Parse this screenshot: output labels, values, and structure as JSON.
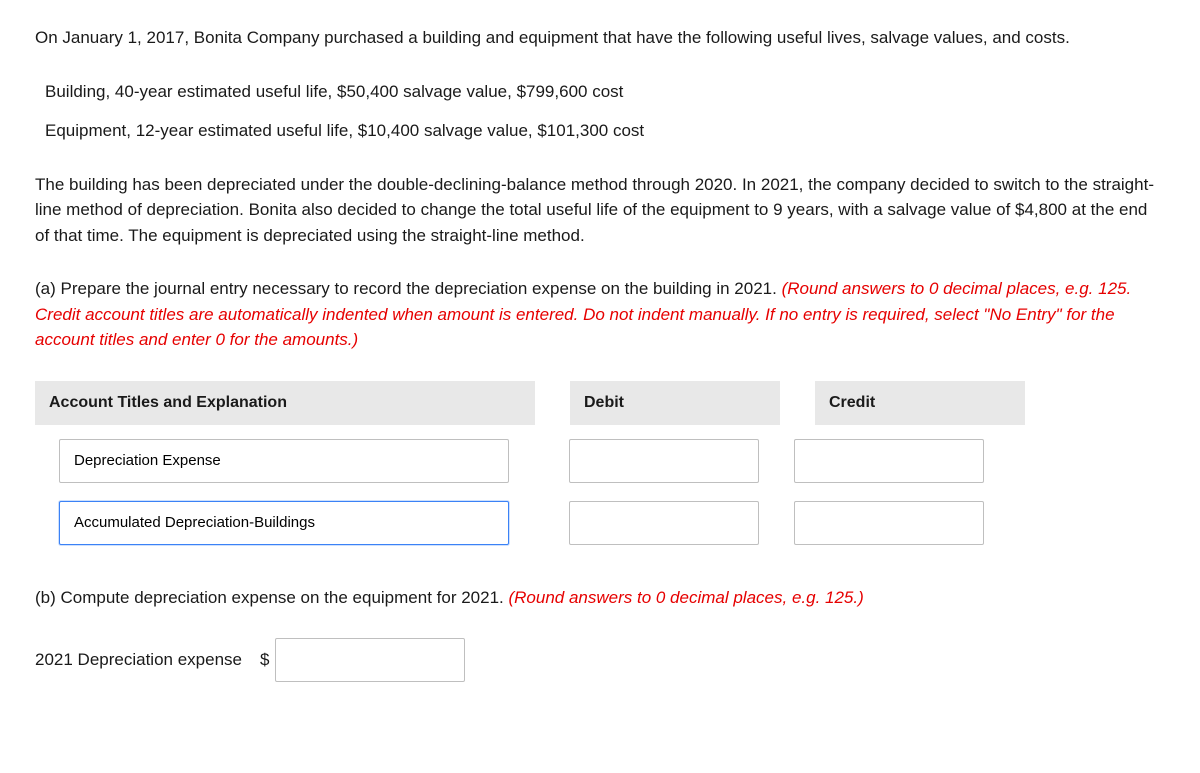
{
  "intro": "On January 1, 2017, Bonita Company purchased a building and equipment that have the following useful lives, salvage values, and costs.",
  "assets": {
    "building": "Building, 40-year estimated useful life, $50,400 salvage value, $799,600 cost",
    "equipment": "Equipment, 12-year estimated useful life, $10,400 salvage value, $101,300 cost"
  },
  "description": "The building has been depreciated under the double-declining-balance method through 2020. In 2021, the company decided to switch to the straight-line method of depreciation. Bonita also decided to change the total useful life of the equipment to 9 years, with a salvage value of $4,800 at the end of that time. The equipment is depreciated using the straight-line method.",
  "partA": {
    "label": "(a) ",
    "prompt": "Prepare the journal entry necessary to record the depreciation expense on the building in 2021. ",
    "instruction": "(Round answers to 0 decimal places, e.g. 125. Credit account titles are automatically indented when amount is entered. Do not indent manually. If no entry is required, select \"No Entry\" for the account titles and enter 0 for the amounts.)"
  },
  "table": {
    "headers": {
      "account": "Account Titles and Explanation",
      "debit": "Debit",
      "credit": "Credit"
    },
    "rows": [
      {
        "account": "Depreciation Expense",
        "debit": "",
        "credit": ""
      },
      {
        "account": "Accumulated Depreciation-Buildings",
        "debit": "",
        "credit": ""
      }
    ]
  },
  "partB": {
    "label": "(b) ",
    "prompt": "Compute depreciation expense on the equipment for 2021. ",
    "instruction": "(Round answers to 0 decimal places, e.g. 125.)"
  },
  "final": {
    "label": "2021 Depreciation expense",
    "currency": "$",
    "value": ""
  }
}
